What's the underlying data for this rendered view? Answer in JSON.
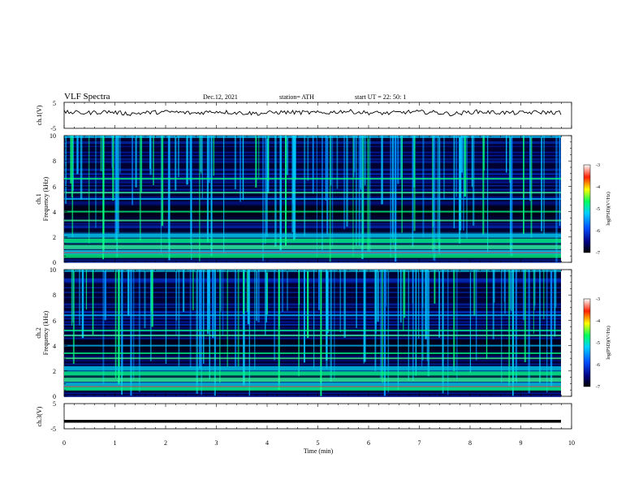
{
  "header": {
    "title": "VLF  Spectra",
    "date": "Dec.12, 2021",
    "station": "station= ATH",
    "start": "start  UT  =    22: 50: 1"
  },
  "chart_data": [
    {
      "type": "line",
      "ylabel": "ch.1(V)",
      "ylim": [
        -5,
        5
      ],
      "ytick_labels": [
        "5",
        "-5"
      ],
      "series": [
        {
          "values": [
            1.2,
            0.9,
            1.4,
            0.6,
            1.1,
            1.3,
            0.8,
            1.5,
            1.0,
            0.7,
            1.2,
            1.1,
            0.9,
            1.6,
            1.0,
            0.8,
            1.3,
            1.2,
            0.5,
            1.4,
            1.1,
            0.9,
            1.2,
            1.0
          ]
        }
      ]
    },
    {
      "type": "heatmap",
      "ylabel": "ch.1\nFrequency (kHz)",
      "ylim": [
        0,
        10
      ],
      "ytick_labels": [
        "0",
        "2",
        "4",
        "6",
        "8",
        "10"
      ],
      "colorbar": {
        "label": "log(PSD)(V²/Hz)",
        "range": [
          -7,
          -3
        ],
        "tick_labels": [
          "-3",
          "-4",
          "-5",
          "-6",
          "-7"
        ]
      },
      "bands_khz": [
        0.6,
        0.9,
        1.3,
        1.8,
        2.2,
        3.3,
        4.0,
        5.0,
        5.5,
        6.6
      ]
    },
    {
      "type": "heatmap",
      "ylabel": "ch.2\nFrequency (kHz)",
      "ylim": [
        0,
        10
      ],
      "ytick_labels": [
        "0",
        "2",
        "4",
        "6",
        "8",
        "10"
      ],
      "colorbar": {
        "label": "log(PSD)(V²/Hz)",
        "range": [
          -7,
          -3
        ],
        "tick_labels": [
          "-3",
          "-4",
          "-5",
          "-6",
          "-7"
        ]
      },
      "bands_khz": [
        0.7,
        1.0,
        1.4,
        1.9,
        2.3,
        3.0,
        3.4,
        4.0,
        4.8,
        5.2,
        6.4
      ]
    },
    {
      "type": "line",
      "ylabel": "ch.3(V)",
      "ylim": [
        -5,
        5
      ],
      "ytick_labels": [
        "5",
        "-5"
      ],
      "series": [
        {
          "values": [
            -2,
            -2,
            -2,
            -2,
            -2,
            -2,
            -2,
            -2,
            -2,
            -2,
            -2,
            -2
          ]
        }
      ]
    }
  ],
  "x_axis": {
    "label": "Time  (min)",
    "xlim": [
      0,
      10
    ],
    "tick_labels": [
      "0",
      "1",
      "2",
      "3",
      "4",
      "5",
      "6",
      "7",
      "8",
      "9",
      "10"
    ]
  },
  "colors": {
    "background": "#000033",
    "band_low": "#00ff80",
    "band_mid": "#00c0ff",
    "band_high": "#ff3030"
  }
}
